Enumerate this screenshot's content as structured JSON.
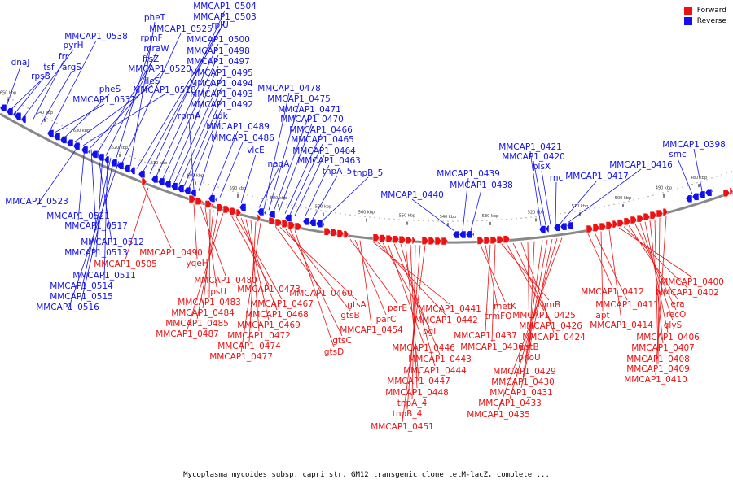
{
  "caption": "Mycoplasma mycoides subsp. capri str. GM12 transgenic clone tetM-lacZ, complete ...",
  "colors": {
    "forward": "#ee1111",
    "reverse": "#1111ee",
    "backbone": "#888888"
  },
  "legend": [
    {
      "label": "Forward",
      "color": "#ee1111"
    },
    {
      "label": "Reverse",
      "color": "#1111ee"
    }
  ],
  "scale_ticks": [
    "650 kbp",
    "640 kbp",
    "630 kbp",
    "620 kbp",
    "610 kbp",
    "600 kbp",
    "590 kbp",
    "580 kbp",
    "570 kbp",
    "560 kbp",
    "550 kbp",
    "540 kbp",
    "530 kbp",
    "520 kbp",
    "510 kbp",
    "500 kbp",
    "490 kbp",
    "480 kbp"
  ],
  "reverse_genes": [
    "dnaJ",
    "rpsB",
    "tsf",
    "pyrH",
    "frr",
    "argS",
    "MMCAP1_0538",
    "MMCAP1_0531",
    "pheS",
    "ileS",
    "MMCAP1_0518",
    "MMCAP1_0520",
    "ftsZ",
    "mraW",
    "rpmF",
    "MMCAP1_0525",
    "pheT",
    "rplU",
    "MMCAP1_0503",
    "MMCAP1_0504",
    "MMCAP1_0500",
    "MMCAP1_0498",
    "MMCAP1_0497",
    "MMCAP1_0495",
    "MMCAP1_0494",
    "MMCAP1_0493",
    "MMCAP1_0492",
    "rpmA",
    "udk",
    "MMCAP1_0489",
    "MMCAP1_0486",
    "vlcE",
    "nagA",
    "MMCAP1_0478",
    "MMCAP1_0475",
    "MMCAP1_0471",
    "MMCAP1_0470",
    "MMCAP1_0466",
    "MMCAP1_0465",
    "MMCAP1_0464",
    "MMCAP1_0463",
    "tnpA_5",
    "tnpB_5",
    "MMCAP1_0440",
    "MMCAP1_0439",
    "MMCAP1_0438",
    "MMCAP1_0421",
    "MMCAP1_0420",
    "plsX",
    "rnc",
    "MMCAP1_0417",
    "MMCAP1_0416",
    "smc",
    "MMCAP1_0398",
    "MMCAP1_0523",
    "MMCAP1_0521",
    "MMCAP1_0517",
    "MMCAP1_0512",
    "MMCAP1_0513",
    "MMCAP1_0511",
    "MMCAP1_0514",
    "MMCAP1_0515",
    "MMCAP1_0516"
  ],
  "forward_genes": [
    "MMCAP1_0490",
    "yqeH",
    "MMCAP1_0505",
    "MMCAP1_0480",
    "rpsU",
    "MMCAP1_0483",
    "MMCAP1_0484",
    "MMCAP1_0485",
    "MMCAP1_0487",
    "MMCAP1_0473",
    "MMCAP1_0467",
    "MMCAP1_0468",
    "MMCAP1_0469",
    "MMCAP1_0472",
    "MMCAP1_0474",
    "MMCAP1_0477",
    "MMCAP1_0460",
    "gtsA",
    "gtsB",
    "gtsC",
    "gtsD",
    "parE",
    "parC",
    "MMCAP1_0454",
    "MMCAP1_0441",
    "MMCAP1_0442",
    "pgi",
    "MMCAP1_0446",
    "MMCAP1_0443",
    "MMCAP1_0444",
    "MMCAP1_0447",
    "MMCAP1_0448",
    "tnpA_4",
    "tnpB_4",
    "MMCAP1_0451",
    "metK",
    "trmFO",
    "MMCAP1_0437",
    "MMCAP1_0436",
    "rpmB",
    "MMCAP1_0425",
    "MMCAP1_0426",
    "MMCAP1_0424",
    "pstB",
    "phoU",
    "MMCAP1_0429",
    "MMCAP1_0430",
    "MMCAP1_0431",
    "MMCAP1_0433",
    "MMCAP1_0435",
    "MMCAP1_0412",
    "MMCAP1_0411",
    "apt",
    "MMCAP1_0414",
    "MMCAP1_0400",
    "MMCAP1_0402",
    "era",
    "recO",
    "glyS",
    "MMCAP1_0406",
    "MMCAP1_0407",
    "MMCAP1_0408",
    "MMCAP1_0409",
    "MMCAP1_0410"
  ]
}
